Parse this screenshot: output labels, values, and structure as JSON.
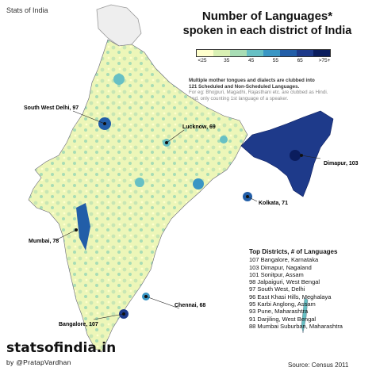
{
  "header": {
    "brand": "Stats of India",
    "title_line1": "Number of Languages*",
    "title_line2": "spoken in each district of India"
  },
  "legend": {
    "ticks": [
      "<25",
      "35",
      "45",
      "55",
      "65",
      ">75+"
    ],
    "colors": [
      "#ffffcc",
      "#d9f0b3",
      "#a8ddb5",
      "#67c0c4",
      "#3a96c4",
      "#225ea8",
      "#1e3a8a",
      "#0b1d5e"
    ]
  },
  "note": {
    "line1": "Multiple mother tongues and dialects are clubbed into",
    "line2": "121 Scheduled and Non-Scheduled Languages.",
    "line3": "For eg: Bhojpuri, Magadhi, Rajasthani etc. are clubbed as Hindi.",
    "line4": "And, only counting 1st language of a speaker."
  },
  "callouts": {
    "south_west_delhi": "South West Delhi, 97",
    "lucknow": "Lucknow, 69",
    "dimapur": "Dimapur, 103",
    "kolkata": "Kolkata, 71",
    "mumbai": "Mumbai, 78",
    "chennai": "Chennai, 68",
    "bangalore": "Bangalore, 107"
  },
  "top_districts": {
    "heading": "Top Districts, # of Languages",
    "items": [
      "107 Bangalore, Karnataka",
      "103 Dimapur, Nagaland",
      "101 Sonitpur, Assam",
      "98 Jalpaiguri, West Bengal",
      "97 South West, Delhi",
      "96 East Khasi Hills, Meghalaya",
      "95 Karbi Anglong, Assam",
      "93 Pune, Maharashtra",
      "91 Darjiling, West Bengal",
      "88 Mumbai Suburban, Maharashtra"
    ]
  },
  "footer": {
    "site": "statsofindia.in",
    "byline": "by @PratapVardhan",
    "source": "Source: Census 2011"
  }
}
